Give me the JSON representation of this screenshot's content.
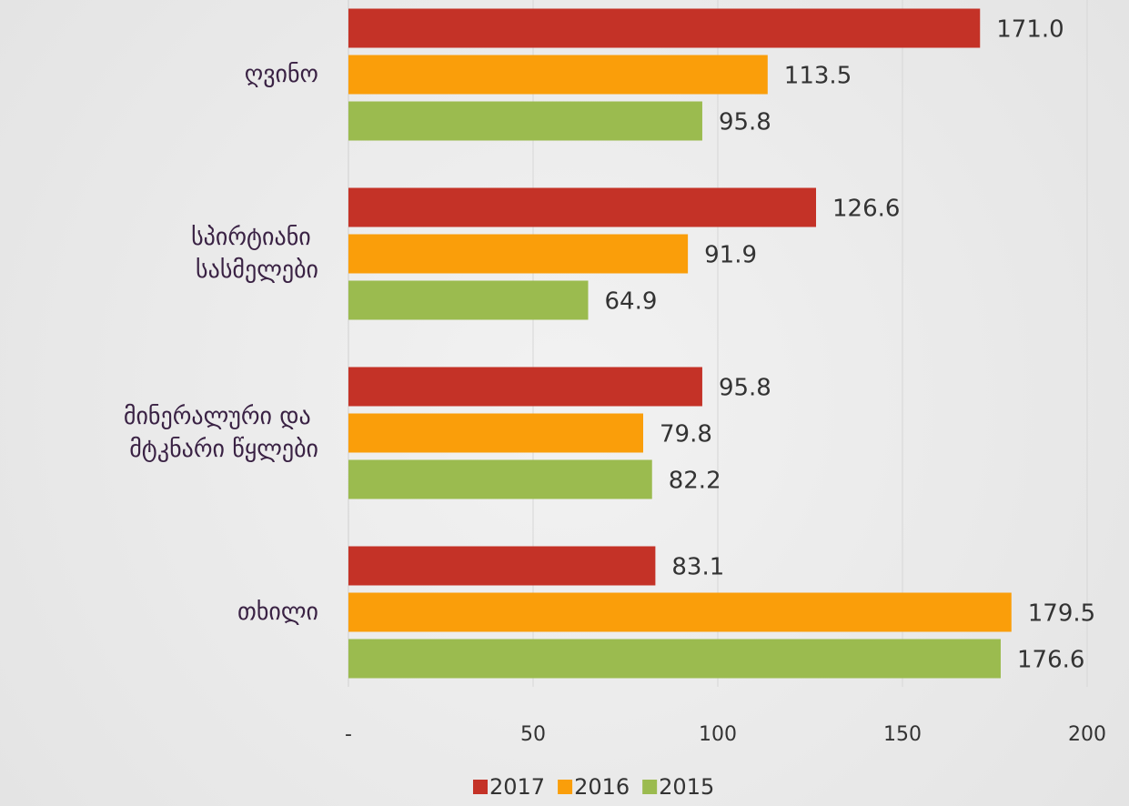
{
  "chart_data": {
    "type": "bar",
    "orientation": "horizontal",
    "categories": [
      "ღვინო",
      "სპირტიანი სასმელები",
      "მინერალური და მტკნარი წყლები",
      "თხილი"
    ],
    "series": [
      {
        "name": "2017",
        "color": "#c43227",
        "values": [
          171.0,
          126.6,
          95.8,
          83.1
        ],
        "value_labels": [
          "171.0",
          "126.6",
          "95.8",
          "83.1"
        ]
      },
      {
        "name": "2016",
        "color": "#fa9e0a",
        "values": [
          113.5,
          91.9,
          79.8,
          179.5
        ],
        "value_labels": [
          "113.5",
          "91.9",
          "79.8",
          "179.5"
        ]
      },
      {
        "name": "2015",
        "color": "#9bbb4f",
        "values": [
          95.8,
          64.9,
          82.2,
          176.6
        ],
        "value_labels": [
          "95.8",
          "64.9",
          "82.2",
          "176.6"
        ]
      }
    ],
    "xlim": [
      0,
      200
    ],
    "xticks": [
      {
        "value": 0,
        "label": "-"
      },
      50,
      100,
      150,
      200
    ],
    "grid": true,
    "legend": "bottom"
  }
}
